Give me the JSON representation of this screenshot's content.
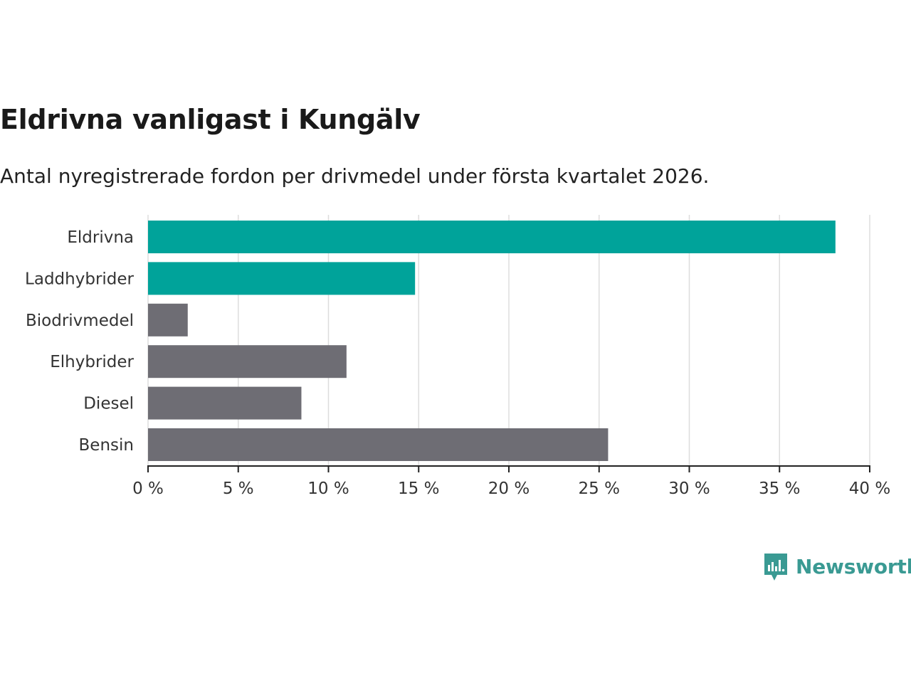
{
  "title": "Eldrivna vanligast i Kungälv",
  "subtitle": "Antal nyregistrerade fordon per drivmedel under första kvartalet 2026.",
  "brand": "Newsworthy",
  "colors": {
    "highlight": "#00a39a",
    "other": "#6e6d74",
    "grid": "#dddddd",
    "axis": "#222222",
    "brand": "#3a9a93"
  },
  "chart_data": {
    "type": "bar",
    "orientation": "horizontal",
    "categories": [
      "Eldrivna",
      "Laddhybrider",
      "Biodrivmedel",
      "Elhybrider",
      "Diesel",
      "Bensin"
    ],
    "values": [
      38.1,
      14.8,
      2.2,
      11.0,
      8.5,
      25.5
    ],
    "highlighted": [
      true,
      true,
      false,
      false,
      false,
      false
    ],
    "xlim": [
      0,
      40
    ],
    "xticks": [
      0,
      5,
      10,
      15,
      20,
      25,
      30,
      35,
      40
    ],
    "tick_suffix": " %",
    "xlabel": "",
    "ylabel": "",
    "grid": true
  }
}
